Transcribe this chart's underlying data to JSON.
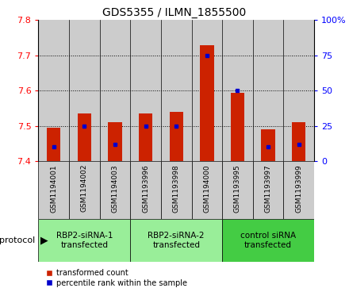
{
  "title": "GDS5355 / ILMN_1855500",
  "samples": [
    "GSM1194001",
    "GSM1194002",
    "GSM1194003",
    "GSM1193996",
    "GSM1193998",
    "GSM1194000",
    "GSM1193995",
    "GSM1193997",
    "GSM1193999"
  ],
  "red_values": [
    7.495,
    7.535,
    7.51,
    7.535,
    7.54,
    7.73,
    7.595,
    7.49,
    7.51
  ],
  "blue_pct": [
    10,
    25,
    12,
    25,
    25,
    75,
    50,
    10,
    12
  ],
  "ymin": 7.4,
  "ymax": 7.8,
  "yticks": [
    7.4,
    7.5,
    7.6,
    7.7,
    7.8
  ],
  "right_yticks": [
    0,
    25,
    50,
    75,
    100
  ],
  "groups": [
    {
      "label": "RBP2-siRNA-1\ntransfected",
      "start": 0,
      "end": 3,
      "color": "#99ee99"
    },
    {
      "label": "RBP2-siRNA-2\ntransfected",
      "start": 3,
      "end": 6,
      "color": "#99ee99"
    },
    {
      "label": "control siRNA\ntransfected",
      "start": 6,
      "end": 9,
      "color": "#44cc44"
    }
  ],
  "bar_color": "#cc2200",
  "dot_color": "#0000cc",
  "baseline": 7.4,
  "bar_width": 0.45,
  "bg_bar_color": "#cccccc",
  "legend_red": "transformed count",
  "legend_blue": "percentile rank within the sample"
}
